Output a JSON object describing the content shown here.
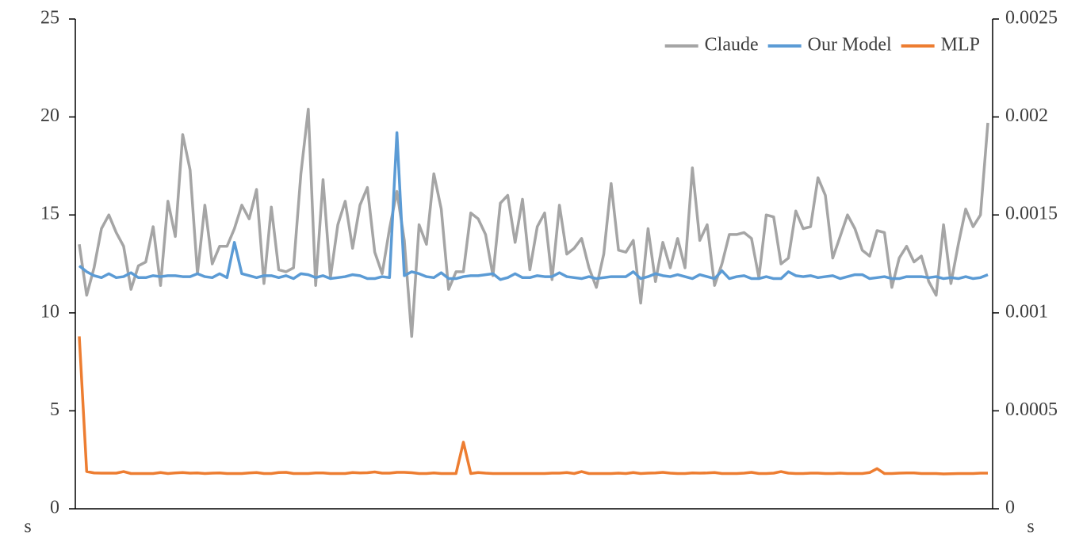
{
  "chart_data": {
    "type": "line",
    "xlabel": "s",
    "x2label": "s",
    "ylim": [
      0,
      25
    ],
    "yticks": [
      0,
      5,
      10,
      15,
      20,
      25
    ],
    "y2lim": [
      0,
      0.0025
    ],
    "y2ticks": [
      0,
      0.0005,
      0.001,
      0.0015,
      0.002,
      0.0025
    ],
    "legend": "top-right",
    "series": [
      {
        "name": "Claude",
        "color": "#a5a5a5",
        "values": [
          13.5,
          10.9,
          12.3,
          14.3,
          15.0,
          14.1,
          13.4,
          11.2,
          12.4,
          12.6,
          14.4,
          11.4,
          15.7,
          13.9,
          19.1,
          17.3,
          12.0,
          15.5,
          12.5,
          13.4,
          13.4,
          14.3,
          15.5,
          14.8,
          16.3,
          11.5,
          15.4,
          12.2,
          12.1,
          12.3,
          17.1,
          20.4,
          11.4,
          16.8,
          11.8,
          14.5,
          15.7,
          13.3,
          15.5,
          16.4,
          13.1,
          12.0,
          14.3,
          16.2,
          13.7,
          8.8,
          14.5,
          13.5,
          17.1,
          15.3,
          11.2,
          12.1,
          12.1,
          15.1,
          14.8,
          14.0,
          11.9,
          15.6,
          16.0,
          13.6,
          15.8,
          12.2,
          14.4,
          15.1,
          11.7,
          15.5,
          13.0,
          13.3,
          13.8,
          12.3,
          11.3,
          13.0,
          16.6,
          13.2,
          13.1,
          13.7,
          10.5,
          14.3,
          11.6,
          13.6,
          12.3,
          13.8,
          12.3,
          17.4,
          13.7,
          14.5,
          11.4,
          12.5,
          14.0,
          14.0,
          14.1,
          13.8,
          11.8,
          15.0,
          14.9,
          12.5,
          12.8,
          15.2,
          14.3,
          14.4,
          16.9,
          16.0,
          12.8,
          13.9,
          15.0,
          14.3,
          13.2,
          12.9,
          14.2,
          14.1,
          11.3,
          12.8,
          13.4,
          12.6,
          12.9,
          11.6,
          10.9,
          14.5,
          11.5,
          13.5,
          15.3,
          14.4,
          15.0,
          19.7
        ]
      },
      {
        "name": "Our Model",
        "color": "#5b9bd5",
        "values": [
          12.4,
          12.1,
          11.9,
          11.8,
          12.0,
          11.8,
          11.85,
          12.05,
          11.8,
          11.8,
          11.9,
          11.85,
          11.9,
          11.9,
          11.85,
          11.85,
          12.0,
          11.85,
          11.8,
          12.0,
          11.8,
          13.6,
          12.0,
          11.9,
          11.8,
          11.9,
          11.9,
          11.8,
          11.9,
          11.75,
          12.0,
          11.95,
          11.8,
          11.9,
          11.75,
          11.8,
          11.85,
          11.95,
          11.9,
          11.75,
          11.75,
          11.85,
          11.8,
          19.2,
          11.9,
          12.1,
          12.0,
          11.85,
          11.8,
          12.05,
          11.75,
          11.75,
          11.85,
          11.9,
          11.9,
          11.95,
          12.0,
          11.7,
          11.8,
          12.0,
          11.8,
          11.8,
          11.9,
          11.85,
          11.85,
          12.05,
          11.85,
          11.8,
          11.75,
          11.85,
          11.75,
          11.8,
          11.85,
          11.85,
          11.85,
          12.1,
          11.75,
          11.85,
          12.0,
          11.9,
          11.85,
          11.95,
          11.85,
          11.75,
          11.95,
          11.85,
          11.75,
          12.15,
          11.75,
          11.85,
          11.9,
          11.75,
          11.75,
          11.85,
          11.75,
          11.75,
          12.1,
          11.9,
          11.85,
          11.9,
          11.8,
          11.85,
          11.9,
          11.75,
          11.85,
          11.95,
          11.95,
          11.75,
          11.8,
          11.85,
          11.75,
          11.75,
          11.85,
          11.85,
          11.85,
          11.8,
          11.85,
          11.75,
          11.8,
          11.75,
          11.85,
          11.75,
          11.8,
          11.95
        ]
      },
      {
        "name": "MLP",
        "color": "#ed7d31",
        "axis": "y2",
        "values": [
          0.00088,
          0.00019,
          0.000183,
          0.000182,
          0.000182,
          0.000182,
          0.00019,
          0.00018,
          0.00018,
          0.00018,
          0.00018,
          0.000185,
          0.00018,
          0.000183,
          0.000185,
          0.000182,
          0.000183,
          0.00018,
          0.000182,
          0.000183,
          0.00018,
          0.00018,
          0.00018,
          0.000183,
          0.000185,
          0.00018,
          0.00018,
          0.000185,
          0.000186,
          0.00018,
          0.00018,
          0.00018,
          0.000183,
          0.000183,
          0.00018,
          0.00018,
          0.00018,
          0.000185,
          0.000183,
          0.000184,
          0.000188,
          0.000182,
          0.000182,
          0.000186,
          0.000186,
          0.000184,
          0.00018,
          0.00018,
          0.000183,
          0.00018,
          0.00018,
          0.00018,
          0.00034,
          0.00018,
          0.000185,
          0.000182,
          0.00018,
          0.00018,
          0.00018,
          0.00018,
          0.00018,
          0.00018,
          0.00018,
          0.00018,
          0.000182,
          0.000182,
          0.000185,
          0.00018,
          0.00019,
          0.00018,
          0.00018,
          0.00018,
          0.00018,
          0.000182,
          0.00018,
          0.000185,
          0.00018,
          0.000182,
          0.000183,
          0.000186,
          0.000182,
          0.00018,
          0.00018,
          0.000183,
          0.000182,
          0.000183,
          0.000185,
          0.00018,
          0.00018,
          0.00018,
          0.000182,
          0.000186,
          0.00018,
          0.00018,
          0.000182,
          0.00019,
          0.000182,
          0.00018,
          0.00018,
          0.000182,
          0.000182,
          0.00018,
          0.00018,
          0.000182,
          0.00018,
          0.00018,
          0.00018,
          0.000185,
          0.000205,
          0.00018,
          0.00018,
          0.000182,
          0.000183,
          0.000183,
          0.00018,
          0.00018,
          0.00018,
          0.000178,
          0.000179,
          0.00018,
          0.00018,
          0.00018,
          0.000182,
          0.000182
        ]
      }
    ]
  }
}
